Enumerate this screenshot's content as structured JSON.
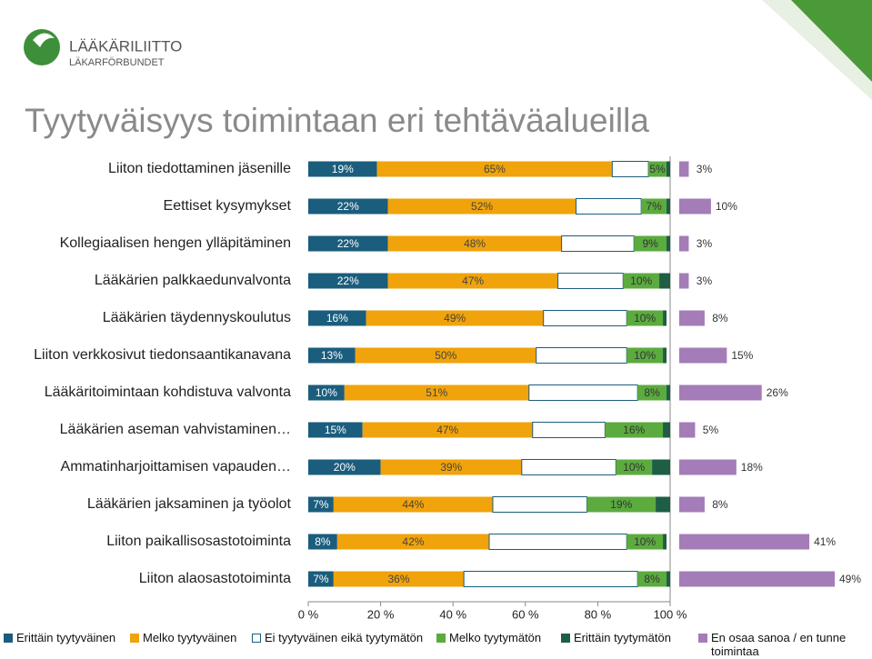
{
  "logo": {
    "name": "LÄÄKÄRILIITTO",
    "subname": "LÄKARFÖRBUNDET"
  },
  "chart_data": {
    "type": "stacked-bar",
    "title": "Tyytyväisyys toimintaan eri tehtäväalueilla",
    "categories": [
      "Liiton tiedottaminen jäsenille",
      "Eettiset kysymykset",
      "Kollegiaalisen hengen ylläpitäminen",
      "Lääkärien palkkaedunvalvonta",
      "Lääkärien täydennyskoulutus",
      "Liiton verkkosivut tiedonsaantikanavana",
      "Lääkäritoimintaan kohdistuva valvonta",
      "Lääkärien aseman vahvistaminen…",
      "Ammatinharjoittamisen vapauden…",
      "Lääkärien jaksaminen ja työolot",
      "Liiton paikallisosastotoiminta",
      "Liiton alaosastotoiminta"
    ],
    "xlim": [
      0,
      100
    ],
    "xticks": [
      {
        "value": 0,
        "label": "0 %"
      },
      {
        "value": 20,
        "label": "20 %"
      },
      {
        "value": 40,
        "label": "40 %"
      },
      {
        "value": 60,
        "label": "60 %"
      },
      {
        "value": 80,
        "label": "80 %"
      },
      {
        "value": 100,
        "label": "100 %"
      }
    ],
    "series": [
      {
        "name": "Erittäin tyytyväinen",
        "color": "#1b5d7d",
        "label_color": "#ffffff",
        "values": [
          19,
          22,
          22,
          22,
          16,
          13,
          10,
          15,
          20,
          7,
          8,
          7
        ],
        "value_labels": [
          "19%",
          "22%",
          "22%",
          "22%",
          "16%",
          "13%",
          "10%",
          "15%",
          "20%",
          "7%",
          "8%",
          "7%"
        ]
      },
      {
        "name": "Melko tyytyväinen",
        "color": "#f0a30a",
        "label_color": "#444444",
        "values": [
          65,
          52,
          48,
          47,
          49,
          50,
          51,
          47,
          39,
          44,
          42,
          36
        ],
        "value_labels": [
          "65%",
          "52%",
          "48%",
          "47%",
          "49%",
          "50%",
          "51%",
          "47%",
          "39%",
          "44%",
          "42%",
          "36%"
        ]
      },
      {
        "name": "Ei tyytyväinen eikä tyytymätön",
        "color": "#ffffff",
        "label_color": "#444444",
        "values": [
          10,
          18,
          20,
          18,
          23,
          25,
          30,
          20,
          26,
          26,
          38,
          48
        ],
        "value_labels": [
          null,
          null,
          null,
          null,
          null,
          null,
          null,
          null,
          null,
          null,
          null,
          null
        ]
      },
      {
        "name": "Melko tyytymätön",
        "color": "#5bab3f",
        "label_color": "#333333",
        "values": [
          5,
          7,
          9,
          10,
          10,
          10,
          8,
          16,
          10,
          19,
          10,
          8
        ],
        "value_labels": [
          "5%",
          "7%",
          "9%",
          "10%",
          "10%",
          "10%",
          "8%",
          "16%",
          "10%",
          "19%",
          "10%",
          "8%"
        ]
      },
      {
        "name": "Erittäin tyytymätön",
        "color": "#1d5e45",
        "label_color": "#ffffff",
        "values": [
          1,
          1,
          1,
          3,
          1,
          1,
          1,
          2,
          5,
          4,
          1,
          1
        ],
        "value_labels": [
          null,
          null,
          null,
          null,
          null,
          null,
          null,
          null,
          null,
          null,
          null,
          null
        ]
      }
    ],
    "aside_series": {
      "name": "En osaa sanoa / en tunne toimintaa",
      "color": "#a47cb8",
      "label_color": "#333333",
      "values": [
        3,
        10,
        3,
        3,
        8,
        15,
        26,
        5,
        18,
        8,
        41,
        49
      ],
      "value_labels": [
        "3%",
        "10%",
        "3%",
        "3%",
        "8%",
        "15%",
        "26%",
        "5%",
        "18%",
        "8%",
        "41%",
        "49%"
      ]
    }
  }
}
